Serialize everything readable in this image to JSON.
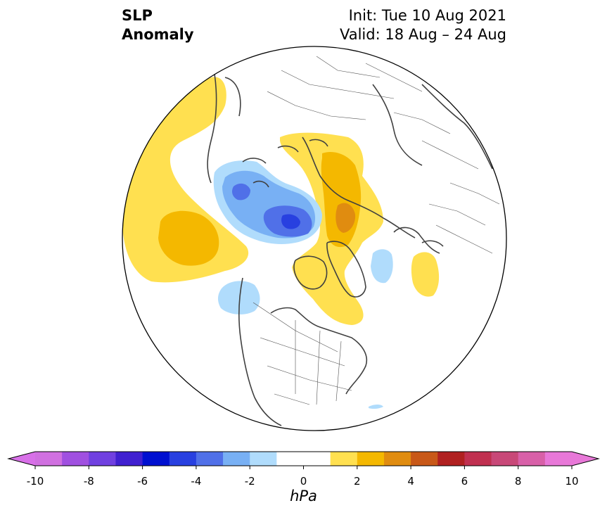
{
  "title": {
    "left_line1": "SLP",
    "left_line2": "Anomaly",
    "right_line1": "Init: Tue 10 Aug 2021",
    "right_line2": "Valid: 18 Aug – 24 Aug"
  },
  "colorbar": {
    "unit_label": "hPa",
    "range": [
      -10,
      10
    ],
    "step": 1,
    "tick_labels": [
      "-10",
      "-8",
      "-6",
      "-4",
      "-2",
      "0",
      "2",
      "4",
      "6",
      "8",
      "10"
    ],
    "colors": [
      "#d070e0",
      "#a050e0",
      "#7040e0",
      "#4020d0",
      "#0010d0",
      "#2840e0",
      "#5070e8",
      "#78b0f4",
      "#b0dcfc",
      "#ffffff",
      "#ffffff",
      "#ffe050",
      "#f4b800",
      "#e08c10",
      "#c85818",
      "#b02020",
      "#c03050",
      "#c84878",
      "#d860a8",
      "#e878d8"
    ],
    "extend_low_color": "#d870e8",
    "extend_high_color": "#e878d8"
  },
  "map": {
    "projection": "north-polar-stereographic",
    "region": "Northern Hemisphere",
    "features": [
      "negative anomaly over Siberia/Arctic Ocean",
      "positive anomaly over North Pacific",
      "positive anomaly over Greenland",
      "weak negative anomaly off North American west coast",
      "weak negative anomaly east of Greenland",
      "weak positive anomaly over North Atlantic"
    ]
  }
}
